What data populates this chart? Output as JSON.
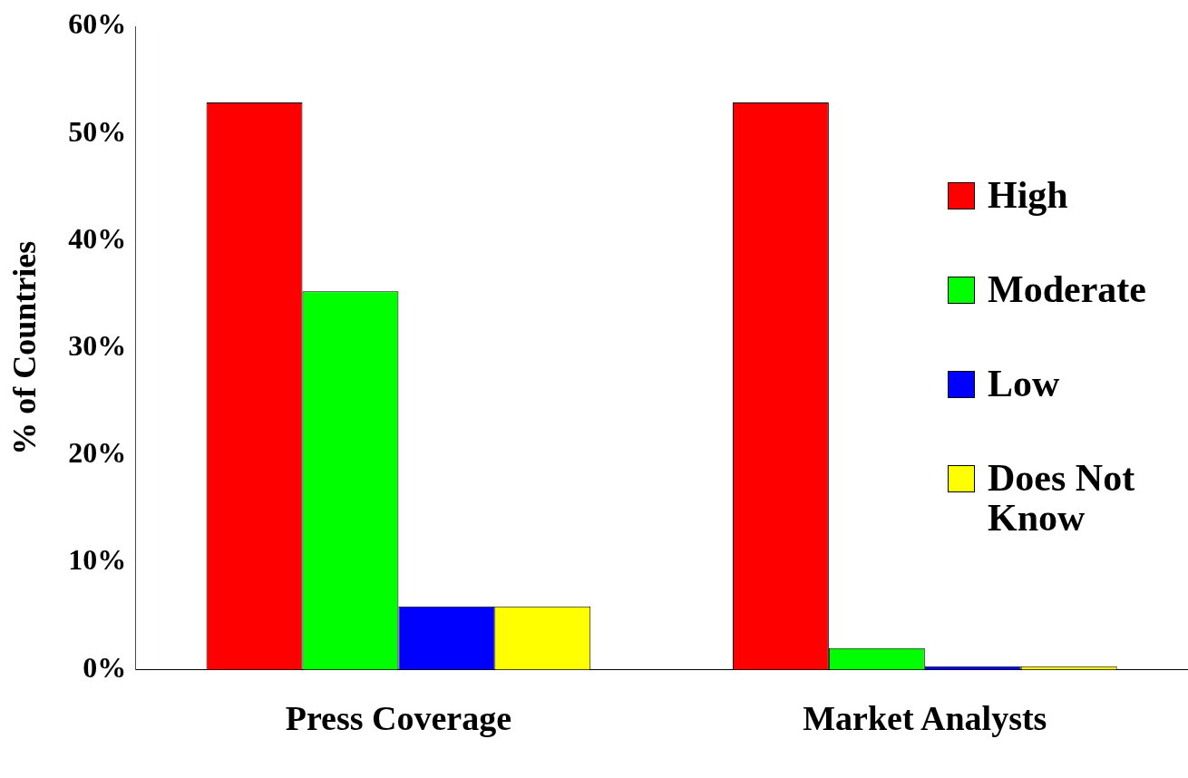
{
  "chart_data": {
    "type": "bar",
    "ylabel": "% of Countries",
    "categories": [
      "Press Coverage",
      "Market Analysts"
    ],
    "series": [
      {
        "name": "High",
        "color": "#ff0000",
        "values": [
          52.9,
          52.9
        ]
      },
      {
        "name": "Moderate",
        "color": "#00ff00",
        "values": [
          35.3,
          2
        ]
      },
      {
        "name": "Low",
        "color": "#0000ff",
        "values": [
          5.9,
          0.3
        ]
      },
      {
        "name": "Does Not Know",
        "color": "#ffff00",
        "values": [
          5.9,
          0.3
        ]
      }
    ],
    "ylim": [
      0,
      60
    ],
    "yticks": [
      {
        "value": 0,
        "label": "0%"
      },
      {
        "value": 10,
        "label": "10%"
      },
      {
        "value": 20,
        "label": "20%"
      },
      {
        "value": 30,
        "label": "30%"
      },
      {
        "value": 40,
        "label": "40%"
      },
      {
        "value": 50,
        "label": "50%"
      },
      {
        "value": 60,
        "label": "60%"
      }
    ],
    "grid": false,
    "legend": "right"
  }
}
